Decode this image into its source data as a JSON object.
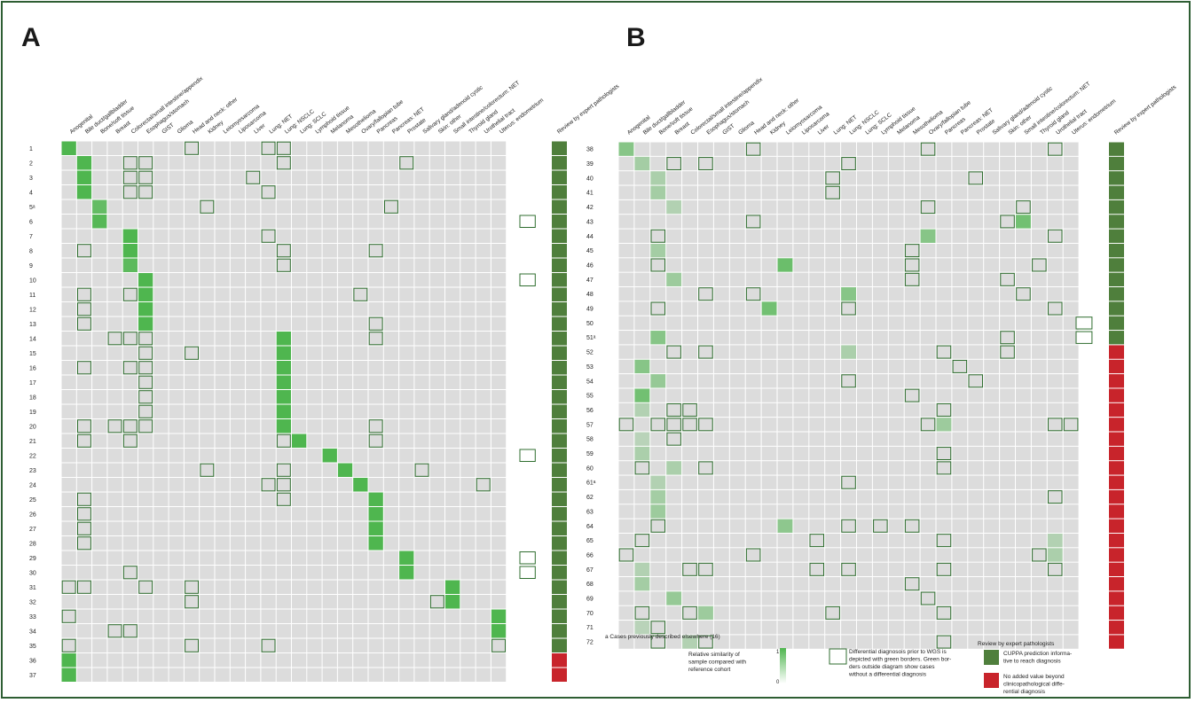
{
  "panels": [
    {
      "letter": "A",
      "categories": [
        "Anogenital",
        "Bile duct/gallbladder",
        "Bone/soft tissue",
        "Breast",
        "Colorectal/small intestine/appendix",
        "Esophagus/stomach",
        "GIST",
        "Glioma",
        "Head and neck: other",
        "Kidney",
        "Leiomyosarcoma",
        "Liposarcoma",
        "Liver",
        "Lung: NET",
        "Lung: NSCLC",
        "Lung: SCLC",
        "Lymphoid tissue",
        "Melanoma",
        "Mesothelioma",
        "Ovary/fallopian tube",
        "Pancreas",
        "Pancreas: NET",
        "Prostate",
        "Salivary gland/adenoid cystic",
        "Skin: other",
        "Small intestine/colorectum: NET",
        "Thyroid gland",
        "Urothelial tract",
        "Uterus: endometrium"
      ],
      "review_label": "Review by expert pathologists",
      "rows": [
        {
          "case": "1",
          "pred": 0,
          "v": 1.0,
          "diff": [
            8,
            13,
            14
          ],
          "outside": false,
          "review": "informative"
        },
        {
          "case": "2",
          "pred": 1,
          "v": 1.0,
          "diff": [
            4,
            5,
            14,
            22
          ],
          "outside": false,
          "review": "informative"
        },
        {
          "case": "3",
          "pred": 1,
          "v": 1.0,
          "diff": [
            4,
            5,
            12
          ],
          "outside": false,
          "review": "informative"
        },
        {
          "case": "4",
          "pred": 1,
          "v": 1.0,
          "diff": [
            4,
            5,
            13
          ],
          "outside": false,
          "review": "informative"
        },
        {
          "case": "5ᵃ",
          "pred": 2,
          "v": 0.85,
          "diff": [
            9,
            21
          ],
          "outside": false,
          "review": "informative"
        },
        {
          "case": "6",
          "pred": 2,
          "v": 0.95,
          "diff": [],
          "outside": true,
          "review": "informative"
        },
        {
          "case": "7",
          "pred": 4,
          "v": 1.0,
          "diff": [
            13
          ],
          "outside": false,
          "review": "informative"
        },
        {
          "case": "8",
          "pred": 4,
          "v": 1.0,
          "diff": [
            1,
            14,
            20
          ],
          "outside": false,
          "review": "informative"
        },
        {
          "case": "9",
          "pred": 4,
          "v": 0.9,
          "diff": [
            14
          ],
          "outside": false,
          "review": "informative"
        },
        {
          "case": "10",
          "pred": 5,
          "v": 1.0,
          "diff": [],
          "outside": true,
          "review": "informative"
        },
        {
          "case": "11",
          "pred": 5,
          "v": 1.0,
          "diff": [
            1,
            4,
            19
          ],
          "outside": false,
          "review": "informative"
        },
        {
          "case": "12",
          "pred": 5,
          "v": 1.0,
          "diff": [
            1
          ],
          "outside": false,
          "review": "informative"
        },
        {
          "case": "13",
          "pred": 5,
          "v": 1.0,
          "diff": [
            1,
            20
          ],
          "outside": false,
          "review": "informative"
        },
        {
          "case": "14",
          "pred": 14,
          "v": 1.0,
          "diff": [
            3,
            4,
            5,
            20
          ],
          "outside": false,
          "review": "informative"
        },
        {
          "case": "15",
          "pred": 14,
          "v": 1.0,
          "diff": [
            5,
            8
          ],
          "outside": false,
          "review": "informative"
        },
        {
          "case": "16",
          "pred": 14,
          "v": 1.0,
          "diff": [
            1,
            4,
            5
          ],
          "outside": false,
          "review": "informative"
        },
        {
          "case": "17",
          "pred": 14,
          "v": 1.0,
          "diff": [
            5
          ],
          "outside": false,
          "review": "informative"
        },
        {
          "case": "18",
          "pred": 14,
          "v": 1.0,
          "diff": [
            5
          ],
          "outside": false,
          "review": "informative"
        },
        {
          "case": "19",
          "pred": 14,
          "v": 1.0,
          "diff": [
            5
          ],
          "outside": false,
          "review": "informative"
        },
        {
          "case": "20",
          "pred": 14,
          "v": 1.0,
          "diff": [
            1,
            3,
            4,
            5,
            20
          ],
          "outside": false,
          "review": "informative"
        },
        {
          "case": "21",
          "pred": 15,
          "v": 1.0,
          "diff": [
            1,
            4,
            14,
            20
          ],
          "outside": false,
          "review": "informative"
        },
        {
          "case": "22",
          "pred": 17,
          "v": 1.0,
          "diff": [],
          "outside": true,
          "review": "informative"
        },
        {
          "case": "23",
          "pred": 18,
          "v": 1.0,
          "diff": [
            9,
            14,
            23
          ],
          "outside": false,
          "review": "informative"
        },
        {
          "case": "24",
          "pred": 19,
          "v": 1.0,
          "diff": [
            13,
            14,
            27
          ],
          "outside": false,
          "review": "informative"
        },
        {
          "case": "25",
          "pred": 20,
          "v": 1.0,
          "diff": [
            1,
            14
          ],
          "outside": false,
          "review": "informative"
        },
        {
          "case": "26",
          "pred": 20,
          "v": 1.0,
          "diff": [
            1
          ],
          "outside": false,
          "review": "informative"
        },
        {
          "case": "27",
          "pred": 20,
          "v": 1.0,
          "diff": [
            1
          ],
          "outside": false,
          "review": "informative"
        },
        {
          "case": "28",
          "pred": 20,
          "v": 1.0,
          "diff": [
            1
          ],
          "outside": false,
          "review": "informative"
        },
        {
          "case": "29",
          "pred": 22,
          "v": 1.0,
          "diff": [],
          "outside": true,
          "review": "informative"
        },
        {
          "case": "30",
          "pred": 22,
          "v": 1.0,
          "diff": [
            4
          ],
          "outside": true,
          "review": "informative"
        },
        {
          "case": "31",
          "pred": 25,
          "v": 1.0,
          "diff": [
            0,
            1,
            5,
            8
          ],
          "outside": false,
          "review": "informative"
        },
        {
          "case": "32",
          "pred": 25,
          "v": 1.0,
          "diff": [
            8,
            24
          ],
          "outside": false,
          "review": "informative"
        },
        {
          "case": "33",
          "pred": 28,
          "v": 1.0,
          "diff": [
            0
          ],
          "outside": false,
          "review": "informative"
        },
        {
          "case": "34",
          "pred": 28,
          "v": 1.0,
          "diff": [
            3,
            4
          ],
          "outside": false,
          "review": "informative"
        },
        {
          "case": "35",
          "pred": 29,
          "v": 1.0,
          "diff": [
            0,
            8,
            13,
            28
          ],
          "outside": false,
          "review": "informative"
        },
        {
          "case": "36",
          "pred": 0,
          "v": 1.0,
          "diff": [],
          "outside": false,
          "review": "no_added_value"
        },
        {
          "case": "37",
          "pred": 0,
          "v": 1.0,
          "diff": [],
          "outside": false,
          "review": "no_added_value"
        }
      ]
    },
    {
      "letter": "B",
      "categories": [
        "Anogenital",
        "Bile duct/gallbladder",
        "Bone/soft tissue",
        "Breast",
        "Colorectal/small intestine/appendix",
        "Esophagus/stomach",
        "GIST",
        "Glioma",
        "Head and neck: other",
        "Kidney",
        "Leiomyosarcoma",
        "Liposarcoma",
        "Liver",
        "Lung: NET",
        "Lung: NSCLC",
        "Lung: SCLC",
        "Lymphoid tissue",
        "Melanoma",
        "Mesothelioma",
        "Ovary/fallopian tube",
        "Pancreas",
        "Pancreas: NET",
        "Prostate",
        "Salivary gland/adenoid cystic",
        "Skin: other",
        "Small intestine/colorectum: NET",
        "Thyroid gland",
        "Urothelial tract",
        "Uterus: endometrium"
      ],
      "review_label": "Review by expert pathologists",
      "rows": [
        {
          "case": "38",
          "pred": 0,
          "v": 0.6,
          "diff": [
            8,
            19,
            27
          ],
          "outside": false,
          "review": "informative"
        },
        {
          "case": "39",
          "pred": 1,
          "v": 0.4,
          "diff": [
            3,
            5,
            14
          ],
          "outside": false,
          "review": "informative"
        },
        {
          "case": "40",
          "pred": 2,
          "v": 0.35,
          "diff": [
            13,
            22
          ],
          "outside": false,
          "review": "informative"
        },
        {
          "case": "41",
          "pred": 2,
          "v": 0.4,
          "diff": [
            13
          ],
          "outside": false,
          "review": "informative"
        },
        {
          "case": "42",
          "pred": 3,
          "v": 0.3,
          "diff": [
            19,
            25
          ],
          "outside": false,
          "review": "informative"
        },
        {
          "case": "43",
          "pred": 25,
          "v": 0.75,
          "diff": [
            8,
            24
          ],
          "outside": false,
          "review": "informative"
        },
        {
          "case": "44",
          "pred": 19,
          "v": 0.6,
          "diff": [
            2,
            27
          ],
          "outside": false,
          "review": "informative"
        },
        {
          "case": "45",
          "pred": 2,
          "v": 0.4,
          "diff": [
            18
          ],
          "outside": false,
          "review": "informative"
        },
        {
          "case": "46",
          "pred": 10,
          "v": 0.8,
          "diff": [
            2,
            18,
            26
          ],
          "outside": false,
          "review": "informative"
        },
        {
          "case": "47",
          "pred": 3,
          "v": 0.45,
          "diff": [
            18,
            24
          ],
          "outside": false,
          "review": "informative"
        },
        {
          "case": "48",
          "pred": 14,
          "v": 0.6,
          "diff": [
            5,
            8,
            25
          ],
          "outside": false,
          "review": "informative"
        },
        {
          "case": "49",
          "pred": 9,
          "v": 0.75,
          "diff": [
            2,
            14,
            27
          ],
          "outside": false,
          "review": "informative"
        },
        {
          "case": "50",
          "pred": -1,
          "v": 0,
          "diff": [],
          "outside": true,
          "review": "informative"
        },
        {
          "case": "51ᵃ",
          "pred": 2,
          "v": 0.6,
          "diff": [
            24
          ],
          "outside": true,
          "review": "informative"
        },
        {
          "case": "52",
          "pred": 14,
          "v": 0.35,
          "diff": [
            3,
            5,
            20,
            24
          ],
          "outside": false,
          "review": "no_added_value"
        },
        {
          "case": "53",
          "pred": 1,
          "v": 0.6,
          "diff": [
            21
          ],
          "outside": false,
          "review": "no_added_value"
        },
        {
          "case": "54",
          "pred": 2,
          "v": 0.5,
          "diff": [
            14,
            22
          ],
          "outside": false,
          "review": "no_added_value"
        },
        {
          "case": "55",
          "pred": 1,
          "v": 0.75,
          "diff": [
            18
          ],
          "outside": false,
          "review": "no_added_value"
        },
        {
          "case": "56",
          "pred": 1,
          "v": 0.3,
          "diff": [
            3,
            4,
            20
          ],
          "outside": false,
          "review": "no_added_value"
        },
        {
          "case": "57",
          "pred": 20,
          "v": 0.45,
          "diff": [
            0,
            2,
            3,
            4,
            5,
            19,
            27,
            28
          ],
          "outside": false,
          "review": "no_added_value"
        },
        {
          "case": "58",
          "pred": 1,
          "v": 0.25,
          "diff": [
            3
          ],
          "outside": false,
          "review": "no_added_value"
        },
        {
          "case": "59",
          "pred": 1,
          "v": 0.35,
          "diff": [
            20
          ],
          "outside": false,
          "review": "no_added_value"
        },
        {
          "case": "60",
          "pred": 3,
          "v": 0.35,
          "diff": [
            1,
            5,
            20
          ],
          "outside": false,
          "review": "no_added_value"
        },
        {
          "case": "61ᵃ",
          "pred": 2,
          "v": 0.3,
          "diff": [
            14
          ],
          "outside": false,
          "review": "no_added_value"
        },
        {
          "case": "62",
          "pred": 2,
          "v": 0.4,
          "diff": [
            27
          ],
          "outside": false,
          "review": "no_added_value"
        },
        {
          "case": "63",
          "pred": 2,
          "v": 0.45,
          "diff": [],
          "outside": false,
          "review": "no_added_value"
        },
        {
          "case": "64",
          "pred": 10,
          "v": 0.55,
          "diff": [
            2,
            14,
            16,
            18
          ],
          "outside": false,
          "review": "no_added_value"
        },
        {
          "case": "65",
          "pred": 27,
          "v": 0.3,
          "diff": [
            1,
            12,
            20
          ],
          "outside": false,
          "review": "no_added_value"
        },
        {
          "case": "66",
          "pred": 27,
          "v": 0.35,
          "diff": [
            0,
            8,
            26
          ],
          "outside": false,
          "review": "no_added_value"
        },
        {
          "case": "67",
          "pred": 1,
          "v": 0.3,
          "diff": [
            4,
            5,
            12,
            14,
            20,
            27
          ],
          "outside": false,
          "review": "no_added_value"
        },
        {
          "case": "68",
          "pred": 1,
          "v": 0.4,
          "diff": [
            18
          ],
          "outside": false,
          "review": "no_added_value"
        },
        {
          "case": "69",
          "pred": 3,
          "v": 0.5,
          "diff": [
            19
          ],
          "outside": false,
          "review": "no_added_value"
        },
        {
          "case": "70",
          "pred": 5,
          "v": 0.45,
          "diff": [
            1,
            4,
            13,
            20
          ],
          "outside": false,
          "review": "no_added_value"
        },
        {
          "case": "71",
          "pred": 1,
          "v": 0.25,
          "diff": [
            2
          ],
          "outside": false,
          "review": "no_added_value"
        },
        {
          "case": "72",
          "pred": 4,
          "v": 0.3,
          "diff": [
            2,
            5,
            20
          ],
          "outside": false,
          "review": "no_added_value"
        }
      ]
    }
  ],
  "footnote": "a Cases previously described elsewhere (16)",
  "legend": {
    "scale_label": [
      "Relative similarity of",
      "sample compared with",
      "reference cohort"
    ],
    "scale_max": "1",
    "scale_min": "0",
    "border_text": [
      "Differential diagnosois prior to WGS is",
      "depicted with green borders. Green bor-",
      "ders outside diagram show cases",
      "without a differential diagnosis"
    ],
    "review_title": "Review by expert pathologists",
    "review_items": [
      {
        "key": "informative",
        "text": [
          "CUPPA prediction informa-",
          "tive to reach diagnosis"
        ],
        "color": "#4f7f3c"
      },
      {
        "key": "no_added_value",
        "text": [
          "No added value beyond",
          "clinicopathological diffe-",
          "rential diagnosis"
        ],
        "color": "#c8242b"
      }
    ]
  },
  "colors": {
    "cell_bg": "#dcdcdc",
    "grid_line": "#ffffff",
    "green_max": "#4fb64f",
    "border": "#2f6e2f",
    "frame": "#2e5e33"
  }
}
